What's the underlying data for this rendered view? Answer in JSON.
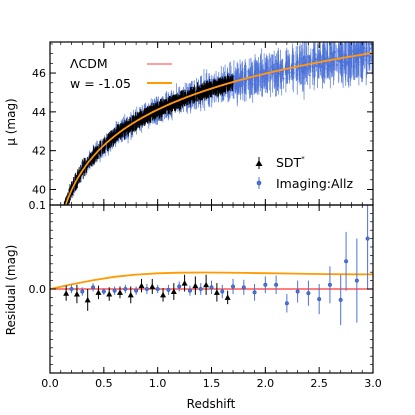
{
  "chart_data": [
    {
      "panel": "top",
      "type": "scatter",
      "ylabel": "μ (mag)",
      "xlim": [
        0,
        3.0
      ],
      "ylim": [
        39.2,
        47.6
      ],
      "yticks": [
        40,
        42,
        44,
        46
      ],
      "yticklabels": [
        "40",
        "42",
        "44",
        "46"
      ],
      "extra_tick_label": "0.1",
      "legend_left": [
        {
          "label": "ΛCDM",
          "color": "#ff7f7f",
          "style": "line"
        },
        {
          "label": "w = -1.05",
          "color": "#ff9a00",
          "style": "line"
        }
      ],
      "legend_right": [
        {
          "label": "SDT",
          "superscript": "*",
          "color": "#000000",
          "marker": "triangle"
        },
        {
          "label": "Imaging:Allz",
          "color": "#4c72d8",
          "marker": "circle"
        }
      ],
      "series": [
        {
          "name": "SDT",
          "x_range": [
            0.12,
            1.7
          ],
          "scatter_mag": 0.25,
          "color": "#000000"
        },
        {
          "name": "Imaging:Allz",
          "x_range": [
            0.1,
            3.0
          ],
          "scatter_mag": 0.3,
          "color": "#4c72d8"
        }
      ],
      "models": [
        {
          "name": "ΛCDM",
          "w": -1.0,
          "color": "#ff7f7f"
        },
        {
          "name": "w = -1.05",
          "w": -1.05,
          "color": "#ff9a00"
        }
      ]
    },
    {
      "panel": "bottom",
      "type": "scatter",
      "xlabel": "Redshift",
      "ylabel": "Residual (mag)",
      "xlim": [
        0,
        3.0
      ],
      "ylim": [
        -0.1,
        0.1
      ],
      "xticks": [
        0,
        0.5,
        1.0,
        1.5,
        2.0,
        2.5,
        3.0
      ],
      "xticklabels": [
        "0.0",
        "0.5",
        "1.0",
        "1.5",
        "2.0",
        "2.5",
        "3.0"
      ],
      "yticks": [
        0
      ],
      "yticklabels": [
        "0.0"
      ],
      "zero_line_color": "#ff3333",
      "model_curve": {
        "name": "w = -1.05",
        "color": "#ff9a00",
        "x": [
          0.0,
          0.2,
          0.4,
          0.6,
          0.8,
          1.0,
          1.2,
          1.4,
          1.6,
          1.8,
          2.0,
          2.2,
          2.4,
          2.6,
          2.8,
          3.0
        ],
        "y": [
          0.0,
          0.0055,
          0.0105,
          0.0145,
          0.0172,
          0.0187,
          0.0194,
          0.0196,
          0.0195,
          0.0192,
          0.0188,
          0.0184,
          0.018,
          0.0177,
          0.0175,
          0.0174
        ]
      },
      "series": [
        {
          "name": "SDT",
          "color": "#000000",
          "marker": "triangle",
          "points": [
            {
              "x": 0.15,
              "y": -0.005,
              "err": 0.009
            },
            {
              "x": 0.25,
              "y": -0.006,
              "err": 0.011
            },
            {
              "x": 0.35,
              "y": -0.013,
              "err": 0.013
            },
            {
              "x": 0.45,
              "y": -0.004,
              "err": 0.008
            },
            {
              "x": 0.55,
              "y": -0.006,
              "err": 0.008
            },
            {
              "x": 0.65,
              "y": -0.004,
              "err": 0.007
            },
            {
              "x": 0.75,
              "y": -0.007,
              "err": 0.01
            },
            {
              "x": 0.85,
              "y": 0.004,
              "err": 0.008
            },
            {
              "x": 0.95,
              "y": 0.003,
              "err": 0.009
            },
            {
              "x": 1.05,
              "y": -0.007,
              "err": 0.008
            },
            {
              "x": 1.15,
              "y": -0.003,
              "err": 0.01
            },
            {
              "x": 1.25,
              "y": 0.007,
              "err": 0.01
            },
            {
              "x": 1.35,
              "y": 0.004,
              "err": 0.011
            },
            {
              "x": 1.45,
              "y": 0.005,
              "err": 0.012
            },
            {
              "x": 1.55,
              "y": -0.004,
              "err": 0.011
            },
            {
              "x": 1.65,
              "y": -0.01,
              "err": 0.008
            }
          ]
        },
        {
          "name": "Imaging:Allz",
          "color": "#4c72d8",
          "marker": "circle",
          "points": [
            {
              "x": 0.2,
              "y": 0.0,
              "err": 0.005
            },
            {
              "x": 0.3,
              "y": -0.003,
              "err": 0.005
            },
            {
              "x": 0.4,
              "y": 0.002,
              "err": 0.005
            },
            {
              "x": 0.5,
              "y": -0.003,
              "err": 0.004
            },
            {
              "x": 0.6,
              "y": -0.002,
              "err": 0.005
            },
            {
              "x": 0.7,
              "y": 0.0,
              "err": 0.005
            },
            {
              "x": 0.8,
              "y": -0.002,
              "err": 0.005
            },
            {
              "x": 0.9,
              "y": 0.0,
              "err": 0.006
            },
            {
              "x": 1.0,
              "y": 0.0,
              "err": 0.005
            },
            {
              "x": 1.1,
              "y": -0.001,
              "err": 0.006
            },
            {
              "x": 1.2,
              "y": 0.003,
              "err": 0.006
            },
            {
              "x": 1.3,
              "y": -0.002,
              "err": 0.006
            },
            {
              "x": 1.4,
              "y": 0.0,
              "err": 0.007
            },
            {
              "x": 1.5,
              "y": 0.002,
              "err": 0.008
            },
            {
              "x": 1.6,
              "y": -0.003,
              "err": 0.008
            },
            {
              "x": 1.7,
              "y": 0.003,
              "err": 0.009
            },
            {
              "x": 1.8,
              "y": 0.002,
              "err": 0.009
            },
            {
              "x": 1.9,
              "y": -0.004,
              "err": 0.01
            },
            {
              "x": 2.0,
              "y": 0.005,
              "err": 0.01
            },
            {
              "x": 2.1,
              "y": 0.005,
              "err": 0.011
            },
            {
              "x": 2.2,
              "y": -0.017,
              "err": 0.011
            },
            {
              "x": 2.3,
              "y": -0.003,
              "err": 0.013
            },
            {
              "x": 2.4,
              "y": -0.005,
              "err": 0.015
            },
            {
              "x": 2.5,
              "y": -0.012,
              "err": 0.018
            },
            {
              "x": 2.6,
              "y": 0.005,
              "err": 0.022
            },
            {
              "x": 2.7,
              "y": -0.013,
              "err": 0.03
            },
            {
              "x": 2.75,
              "y": 0.033,
              "err": 0.035
            },
            {
              "x": 2.85,
              "y": 0.01,
              "err": 0.05
            },
            {
              "x": 2.95,
              "y": 0.06,
              "err": 0.06
            }
          ]
        }
      ]
    }
  ]
}
